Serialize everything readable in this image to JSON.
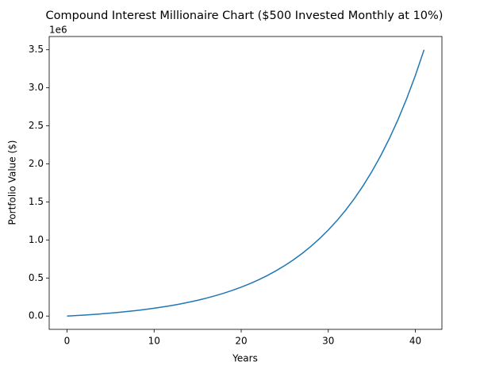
{
  "chart_data": {
    "type": "line",
    "title": "Compound Interest Millionaire Chart ($500 Invested Monthly at 10%)",
    "xlabel": "Years",
    "ylabel": "Portfolio Value ($)",
    "y_offset_label": "1e6",
    "x": [
      0,
      1,
      2,
      3,
      4,
      5,
      6,
      7,
      8,
      9,
      10,
      11,
      12,
      13,
      14,
      15,
      16,
      17,
      18,
      19,
      20,
      21,
      22,
      23,
      24,
      25,
      26,
      27,
      28,
      29,
      30,
      31,
      32,
      33,
      34,
      35,
      36,
      37,
      38,
      39,
      40,
      41
    ],
    "series": [
      {
        "color": "#1f77b4",
        "values": [
          0,
          6283,
          13223,
          20891,
          29361,
          38718,
          49055,
          60475,
          73090,
          87026,
          102422,
          119430,
          138219,
          158975,
          181905,
          207235,
          235218,
          266131,
          300282,
          338008,
          379685,
          425726,
          476588,
          532775,
          594846,
          663414,
          739164,
          822846,
          915294,
          1017420,
          1130238,
          1254870,
          1392552,
          1544658,
          1712682,
          1898304,
          2103360,
          2329890,
          2580132,
          2856582,
          3161976,
          3499350
        ]
      }
    ],
    "xlim": [
      -2.05,
      43.05
    ],
    "xticks": [
      0,
      10,
      20,
      30,
      40
    ],
    "ylim": [
      -174968,
      3674318
    ],
    "yticks": [
      {
        "value": 0,
        "label": "0.0"
      },
      {
        "value": 500000,
        "label": "0.5"
      },
      {
        "value": 1000000,
        "label": "1.0"
      },
      {
        "value": 1500000,
        "label": "1.5"
      },
      {
        "value": 2000000,
        "label": "2.0"
      },
      {
        "value": 2500000,
        "label": "2.5"
      },
      {
        "value": 3000000,
        "label": "3.0"
      },
      {
        "value": 3500000,
        "label": "3.5"
      }
    ],
    "grid": false
  }
}
